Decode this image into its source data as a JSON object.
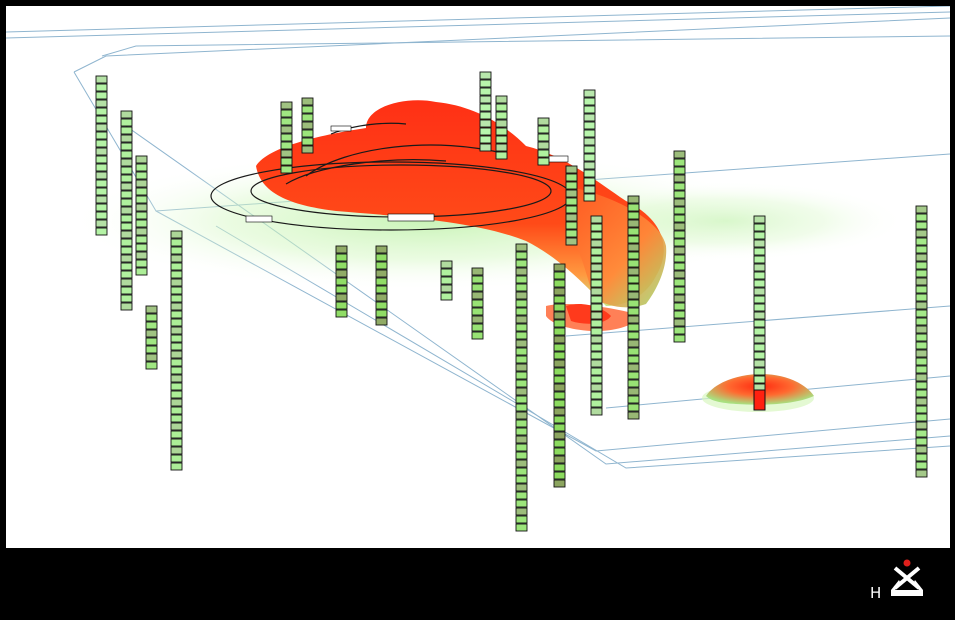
{
  "viewer": {
    "background": "#ffffff",
    "frame_color": "#000000",
    "grid_line_color": "#8fb5cf",
    "plume_colors": [
      "#ff2a10",
      "#ff6a20",
      "#ffa040",
      "#c8f0a0",
      "#e8ffd8"
    ]
  },
  "legend_strip": {
    "logo_letter": "H",
    "logo_icon": "compass-north-icon",
    "logo_dot_color": "#e0201c"
  }
}
